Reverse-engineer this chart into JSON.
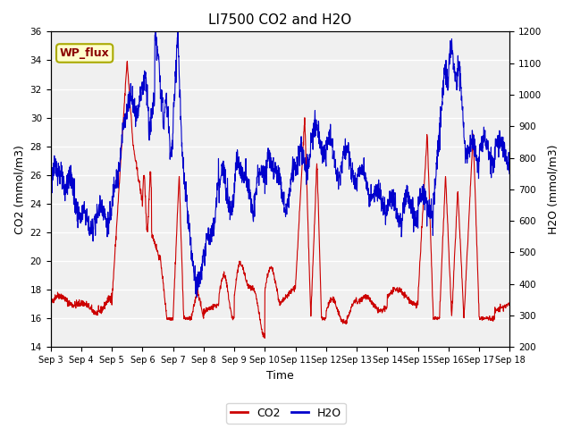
{
  "title": "LI7500 CO2 and H2O",
  "xlabel": "Time",
  "ylabel_left": "CO2 (mmol/m3)",
  "ylabel_right": "H2O (mmol/m3)",
  "xlim": [
    0,
    15
  ],
  "ylim_left": [
    14,
    36
  ],
  "ylim_right": [
    200,
    1200
  ],
  "co2_color": "#cc0000",
  "h2o_color": "#0000cc",
  "fig_bg_color": "#ffffff",
  "plot_bg_color": "#f0f0f0",
  "grid_color": "#ffffff",
  "annotation_text": "WP_flux",
  "annotation_bg": "#ffffcc",
  "annotation_border": "#aaaa00",
  "x_tick_labels": [
    "Sep 3",
    "Sep 4",
    "Sep 5",
    "Sep 6",
    "Sep 7",
    "Sep 8",
    "Sep 9",
    "Sep 10",
    "Sep 11",
    "Sep 12",
    "Sep 13",
    "Sep 14",
    "Sep 15",
    "Sep 16",
    "Sep 17",
    "Sep 18"
  ],
  "y_left_ticks": [
    14,
    16,
    18,
    20,
    22,
    24,
    26,
    28,
    30,
    32,
    34,
    36
  ],
  "y_right_ticks": [
    200,
    300,
    400,
    500,
    600,
    700,
    800,
    900,
    1000,
    1100,
    1200
  ],
  "legend_co2": "CO2",
  "legend_h2o": "H2O",
  "title_fontsize": 11,
  "axis_label_fontsize": 9,
  "tick_fontsize": 7.5,
  "annotation_fontsize": 9,
  "legend_fontsize": 9
}
